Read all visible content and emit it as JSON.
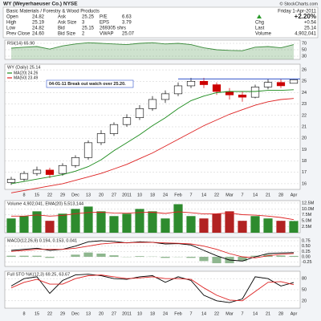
{
  "header": {
    "title": "WY (Weyerhaeuser Co.) NYSE",
    "source": "© StockCharts.com",
    "sector": "Basic Materials / Forestry & Wood Products",
    "quote": [
      [
        "Open",
        "24.82",
        "Ask",
        "25.25",
        "P/E",
        "6.63"
      ],
      [
        "High",
        "25.19",
        "Ask Size",
        "3",
        "EPS",
        "3.79"
      ],
      [
        "Low",
        "24.82",
        "Bid",
        "25.15",
        "269305 shrs"
      ],
      [
        "Prev Close",
        "24.60",
        "Bid Size",
        "2",
        "VWAP",
        "25.07"
      ]
    ],
    "date": "Friday 1-Apr-2011",
    "change_pct": "+2.20%",
    "summary": [
      [
        "Chg",
        "+0.54"
      ],
      [
        "Last",
        "25.14"
      ],
      [
        "Volume",
        "4,902,041"
      ]
    ]
  },
  "chart_data": [
    {
      "type": "area",
      "title": "RSI(14) 65.90",
      "ylim": [
        20,
        80
      ],
      "yticks": [
        70,
        50,
        30
      ],
      "grid": true,
      "series": [
        {
          "color": "#3a8a3a",
          "values": [
            55,
            58,
            60,
            52,
            62,
            68,
            72,
            70,
            68,
            66,
            70,
            72,
            68,
            70,
            66,
            56,
            50,
            48,
            47,
            58,
            60,
            56,
            65.9
          ]
        }
      ]
    },
    {
      "type": "candlestick",
      "title": "WY (Daily) 25.14",
      "annotation": "04-01-11 Break out watch over 25.20.",
      "resistance": 25.2,
      "resistance_color": "#3355cc",
      "categories": [
        null,
        "8",
        "15",
        "22",
        "29",
        "Dec",
        "13",
        "20",
        "27",
        "2011",
        "10",
        "18",
        "24",
        "Feb",
        "7",
        "14",
        "22",
        "Mar",
        "7",
        "14",
        "21",
        "28",
        "Apr"
      ],
      "open": [
        16.1,
        16.4,
        16.9,
        17.2,
        16.9,
        17.6,
        18.3,
        19.6,
        20.4,
        21.2,
        21.8,
        22.6,
        23.4,
        23.9,
        24.6,
        25.0,
        24.7,
        24.1,
        23.8,
        23.6,
        24.5,
        24.9,
        24.82
      ],
      "high": [
        16.6,
        17.1,
        17.5,
        17.4,
        17.8,
        18.5,
        19.8,
        20.7,
        21.4,
        22.1,
        22.9,
        23.7,
        24.2,
        24.9,
        25.3,
        25.3,
        24.9,
        24.4,
        24.1,
        24.7,
        25.2,
        25.2,
        25.19
      ],
      "low": [
        15.9,
        16.2,
        16.7,
        16.5,
        16.7,
        17.4,
        18.1,
        19.4,
        20.2,
        21.0,
        21.6,
        22.4,
        23.1,
        23.7,
        24.4,
        24.4,
        23.8,
        23.4,
        23.2,
        23.5,
        24.3,
        24.4,
        24.82
      ],
      "close": [
        16.4,
        16.9,
        17.2,
        16.8,
        17.6,
        18.3,
        19.6,
        20.4,
        21.2,
        21.8,
        22.6,
        23.4,
        23.9,
        24.6,
        25.0,
        24.7,
        24.1,
        23.8,
        23.6,
        24.5,
        24.9,
        24.6,
        25.14
      ],
      "up_color": "#000000",
      "down_color": "#cc0000",
      "ylim": [
        15.5,
        26.5
      ],
      "yticks": [
        26,
        25,
        24,
        23,
        22,
        21,
        20,
        19,
        18,
        17,
        16
      ],
      "grid": true,
      "series": [
        {
          "name": "MA(20) 24.26",
          "color": "#1a8a1a",
          "values": [
            16.0,
            16.2,
            16.4,
            16.6,
            16.8,
            17.1,
            17.5,
            18.1,
            18.9,
            19.6,
            20.3,
            21.1,
            21.8,
            22.6,
            23.3,
            23.7,
            24.0,
            24.1,
            24.1,
            24.1,
            24.2,
            24.2,
            24.26
          ]
        },
        {
          "name": "MA(50) 23.49",
          "color": "#dd2222",
          "values": [
            15.2,
            15.4,
            15.6,
            15.8,
            16.0,
            16.3,
            16.6,
            16.9,
            17.3,
            17.7,
            18.2,
            18.7,
            19.3,
            19.9,
            20.5,
            21.1,
            21.6,
            22.1,
            22.5,
            22.9,
            23.2,
            23.4,
            23.49
          ]
        }
      ]
    },
    {
      "type": "bar",
      "title": "Volume 4,902,041, EMA(20) 5,513,144",
      "up_color": "#2e8b2e",
      "down_color": "#b22222",
      "values": [
        6,
        7,
        9,
        5,
        8,
        10,
        11,
        9,
        7,
        8,
        10,
        9,
        6,
        12,
        7,
        6,
        8,
        9,
        5,
        7,
        6,
        5,
        4.9
      ],
      "ylim": [
        0,
        13.5
      ],
      "yticks": [
        {
          "value": 12.5,
          "label": "12.5M"
        },
        {
          "value": 10,
          "label": "10.0M"
        },
        {
          "value": 7.5,
          "label": "7.5M"
        },
        {
          "value": 5,
          "label": "5.0M"
        },
        {
          "value": 2.5,
          "label": "2.5M"
        }
      ],
      "grid": true,
      "series": [
        {
          "color": "#dd2222",
          "values": [
            7,
            7,
            7.5,
            7,
            7.3,
            8,
            8.5,
            8.6,
            8.3,
            8.2,
            8.5,
            8.6,
            8.1,
            8.8,
            8.4,
            7.9,
            8,
            8.3,
            7.6,
            7.4,
            7,
            6.4,
            5.5
          ]
        }
      ]
    },
    {
      "type": "line",
      "title": "MACD(12,26,9) 0.194, 0.153, 0.041",
      "ylim": [
        -0.45,
        0.9
      ],
      "yticks": [
        0.75,
        {
          "value": 0.5,
          "label": "0.50"
        },
        0.25,
        {
          "value": 0,
          "label": "0.00"
        },
        -0.25
      ],
      "grid": true,
      "series": [
        {
          "style": "bar",
          "color": "#8fb78f",
          "values": [
            0.05,
            0.05,
            0.05,
            -0.05,
            0,
            0.1,
            0.2,
            0.15,
            0.07,
            -0.01,
            0.03,
            0.01,
            -0.05,
            -0.01,
            -0.05,
            -0.2,
            -0.3,
            -0.3,
            -0.2,
            0.05,
            0.1,
            0.06,
            0.041
          ]
        },
        {
          "style": "line",
          "color": "#000000",
          "values": [
            0.3,
            0.35,
            0.4,
            0.3,
            0.35,
            0.5,
            0.7,
            0.75,
            0.72,
            0.65,
            0.7,
            0.68,
            0.6,
            0.62,
            0.55,
            0.3,
            0.05,
            -0.15,
            -0.2,
            0.0,
            0.15,
            0.18,
            0.194
          ]
        },
        {
          "style": "line",
          "color": "#dd2222",
          "values": [
            0.25,
            0.3,
            0.35,
            0.35,
            0.35,
            0.4,
            0.5,
            0.6,
            0.65,
            0.66,
            0.67,
            0.67,
            0.65,
            0.63,
            0.6,
            0.5,
            0.35,
            0.15,
            0.0,
            -0.05,
            0.05,
            0.12,
            0.153
          ]
        }
      ]
    },
    {
      "type": "line",
      "title": "Full STO %K(12,3) 69.25, 63.67",
      "ylim": [
        0,
        100
      ],
      "yticks": [
        80,
        50,
        20
      ],
      "grid": true,
      "series": [
        {
          "style": "line",
          "color": "#000000",
          "values": [
            60,
            80,
            85,
            40,
            75,
            90,
            92,
            88,
            80,
            78,
            85,
            88,
            70,
            85,
            75,
            35,
            20,
            15,
            25,
            85,
            80,
            60,
            69.25
          ]
        },
        {
          "style": "line",
          "color": "#dd2222",
          "values": [
            55,
            70,
            78,
            65,
            65,
            80,
            88,
            90,
            85,
            80,
            82,
            85,
            80,
            80,
            78,
            55,
            35,
            22,
            20,
            45,
            70,
            72,
            63.67
          ]
        }
      ]
    }
  ]
}
